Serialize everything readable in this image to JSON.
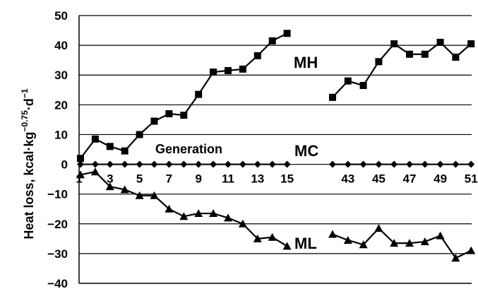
{
  "chart_data": {
    "type": "line",
    "ylabel": {
      "main": "Heat loss, kcal·kg",
      "exp1": "−0.75",
      "mid": "·d",
      "exp2": "−1"
    },
    "annotation": "Generation",
    "ylim": [
      -40,
      50
    ],
    "yticks": [
      50,
      40,
      30,
      20,
      10,
      0,
      -10,
      -20,
      -30,
      -40
    ],
    "ytick_labels": [
      "50",
      "40",
      "30",
      "20",
      "10",
      "0",
      "−10",
      "−20",
      "−30",
      "−40"
    ],
    "xticks": [
      3,
      5,
      7,
      9,
      11,
      13,
      15,
      43,
      45,
      47,
      49,
      51
    ],
    "xtick_labels": [
      "3",
      "5",
      "7",
      "9",
      "11",
      "13",
      "15",
      "43",
      "45",
      "47",
      "49",
      "51"
    ],
    "x_extra_label": "1",
    "grid": "horizontal",
    "series": [
      {
        "name": "MH",
        "marker": "square",
        "segments": [
          [
            [
              1,
              2
            ],
            [
              2,
              8.5
            ],
            [
              3,
              6
            ],
            [
              4,
              4.5
            ],
            [
              5,
              10
            ],
            [
              6,
              14.5
            ],
            [
              7,
              17
            ],
            [
              8,
              16.5
            ],
            [
              9,
              23.5
            ],
            [
              10,
              31
            ],
            [
              11,
              31.5
            ],
            [
              12,
              32
            ],
            [
              13,
              36.5
            ],
            [
              14,
              41.5
            ],
            [
              15,
              44
            ]
          ],
          [
            [
              42,
              22.5
            ],
            [
              43,
              28
            ],
            [
              44,
              26.5
            ],
            [
              45,
              34.5
            ],
            [
              46,
              40.5
            ],
            [
              47,
              37
            ],
            [
              48,
              37
            ],
            [
              49,
              41
            ],
            [
              50,
              36
            ],
            [
              51,
              40.5
            ]
          ]
        ]
      },
      {
        "name": "MC",
        "marker": "diamond",
        "segments": [
          [
            [
              1,
              0
            ],
            [
              2,
              0
            ],
            [
              3,
              0
            ],
            [
              4,
              0
            ],
            [
              5,
              0
            ],
            [
              6,
              0
            ],
            [
              7,
              0
            ],
            [
              8,
              0
            ],
            [
              9,
              0
            ],
            [
              10,
              0
            ],
            [
              11,
              0
            ],
            [
              12,
              0
            ],
            [
              13,
              0
            ],
            [
              14,
              0
            ],
            [
              15,
              0
            ]
          ],
          [
            [
              42,
              0
            ],
            [
              43,
              0
            ],
            [
              44,
              0
            ],
            [
              45,
              0
            ],
            [
              46,
              0
            ],
            [
              47,
              0
            ],
            [
              48,
              0
            ],
            [
              49,
              0
            ],
            [
              50,
              0
            ],
            [
              51,
              0
            ]
          ]
        ]
      },
      {
        "name": "ML",
        "marker": "triangle",
        "segments": [
          [
            [
              1,
              -3.5
            ],
            [
              2,
              -2.5
            ],
            [
              3,
              -7.5
            ],
            [
              4,
              -8.5
            ],
            [
              5,
              -10.5
            ],
            [
              6,
              -10.5
            ],
            [
              7,
              -15
            ],
            [
              8,
              -17.5
            ],
            [
              9,
              -16.5
            ],
            [
              10,
              -16.5
            ],
            [
              11,
              -18
            ],
            [
              12,
              -20
            ],
            [
              13,
              -25
            ],
            [
              14,
              -24.5
            ],
            [
              15,
              -27.5
            ]
          ],
          [
            [
              42,
              -23.5
            ],
            [
              43,
              -25.5
            ],
            [
              44,
              -27
            ],
            [
              45,
              -21.5
            ],
            [
              46,
              -26.5
            ],
            [
              47,
              -26.5
            ],
            [
              48,
              -26
            ],
            [
              49,
              -24
            ],
            [
              50,
              -31.5
            ],
            [
              51,
              -29
            ]
          ]
        ]
      }
    ]
  }
}
